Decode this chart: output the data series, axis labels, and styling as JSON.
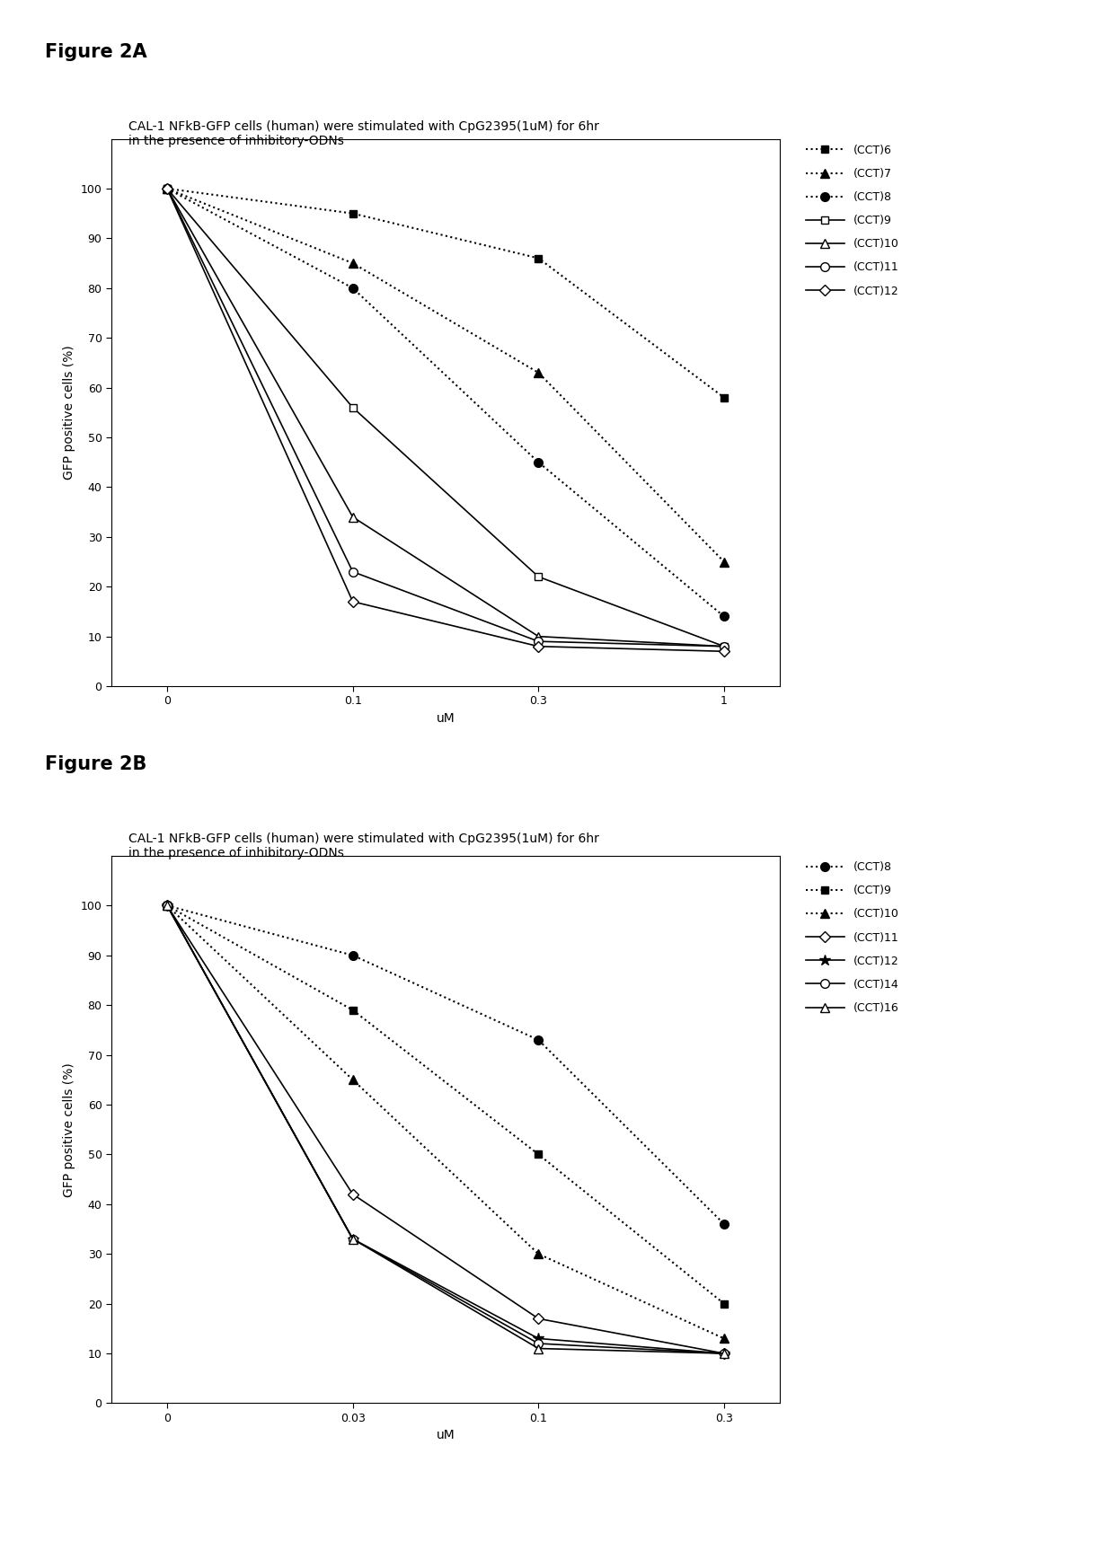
{
  "fig2a": {
    "title_fig": "Figure 2A",
    "subtitle": "CAL-1 NFkB-GFP cells (human) were stimulated with CpG2395(1uM) for 6hr\nin the presence of inhibitory-ODNs",
    "xlabel": "uM",
    "ylabel": "GFP positive cells (%)",
    "x_positions": [
      0,
      1,
      2,
      3
    ],
    "xtick_labels": [
      "0",
      "0.1",
      "0.3",
      "1"
    ],
    "ylim": [
      0,
      110
    ],
    "yticks": [
      0,
      10,
      20,
      30,
      40,
      50,
      60,
      70,
      80,
      90,
      100
    ],
    "series": [
      {
        "label": "(CCT)6",
        "y": [
          100,
          95,
          86,
          58
        ],
        "color": "black",
        "linestyle": "dotted",
        "marker": "s",
        "markerfacecolor": "black",
        "markersize": 6,
        "linewidth": 1.5
      },
      {
        "label": "(CCT)7",
        "y": [
          100,
          85,
          63,
          25
        ],
        "color": "black",
        "linestyle": "dotted",
        "marker": "^",
        "markerfacecolor": "black",
        "markersize": 7,
        "linewidth": 1.5
      },
      {
        "label": "(CCT)8",
        "y": [
          100,
          80,
          45,
          14
        ],
        "color": "black",
        "linestyle": "dotted",
        "marker": "o",
        "markerfacecolor": "black",
        "markersize": 7,
        "linewidth": 1.5
      },
      {
        "label": "(CCT)9",
        "y": [
          100,
          56,
          22,
          8
        ],
        "color": "black",
        "linestyle": "solid",
        "marker": "s",
        "markerfacecolor": "white",
        "markersize": 6,
        "linewidth": 1.2
      },
      {
        "label": "(CCT)10",
        "y": [
          100,
          34,
          10,
          8
        ],
        "color": "black",
        "linestyle": "solid",
        "marker": "^",
        "markerfacecolor": "white",
        "markersize": 7,
        "linewidth": 1.2
      },
      {
        "label": "(CCT)11",
        "y": [
          100,
          23,
          9,
          8
        ],
        "color": "black",
        "linestyle": "solid",
        "marker": "o",
        "markerfacecolor": "white",
        "markersize": 7,
        "linewidth": 1.2
      },
      {
        "label": "(CCT)12",
        "y": [
          100,
          17,
          8,
          7
        ],
        "color": "black",
        "linestyle": "solid",
        "marker": "D",
        "markerfacecolor": "white",
        "markersize": 6,
        "linewidth": 1.2
      }
    ]
  },
  "fig2b": {
    "title_fig": "Figure 2B",
    "subtitle": "CAL-1 NFkB-GFP cells (human) were stimulated with CpG2395(1uM) for 6hr\nin the presence of inhibitory-ODNs",
    "xlabel": "uM",
    "ylabel": "GFP positive cells (%)",
    "x_positions": [
      0,
      1,
      2,
      3
    ],
    "xtick_labels": [
      "0",
      "0.03",
      "0.1",
      "0.3"
    ],
    "ylim": [
      0,
      110
    ],
    "yticks": [
      0,
      10,
      20,
      30,
      40,
      50,
      60,
      70,
      80,
      90,
      100
    ],
    "series": [
      {
        "label": "(CCT)8",
        "y": [
          100,
          90,
          73,
          36
        ],
        "color": "black",
        "linestyle": "dotted",
        "marker": "o",
        "markerfacecolor": "black",
        "markersize": 7,
        "linewidth": 1.5
      },
      {
        "label": "(CCT)9",
        "y": [
          100,
          79,
          50,
          20
        ],
        "color": "black",
        "linestyle": "dotted",
        "marker": "s",
        "markerfacecolor": "black",
        "markersize": 6,
        "linewidth": 1.5
      },
      {
        "label": "(CCT)10",
        "y": [
          100,
          65,
          30,
          13
        ],
        "color": "black",
        "linestyle": "dotted",
        "marker": "^",
        "markerfacecolor": "black",
        "markersize": 7,
        "linewidth": 1.5
      },
      {
        "label": "(CCT)11",
        "y": [
          100,
          42,
          17,
          10
        ],
        "color": "black",
        "linestyle": "solid",
        "marker": "D",
        "markerfacecolor": "white",
        "markersize": 6,
        "linewidth": 1.2
      },
      {
        "label": "(CCT)12",
        "y": [
          100,
          33,
          13,
          10
        ],
        "color": "black",
        "linestyle": "solid",
        "marker": "*",
        "markerfacecolor": "black",
        "markersize": 9,
        "linewidth": 1.2
      },
      {
        "label": "(CCT)14",
        "y": [
          100,
          33,
          12,
          10
        ],
        "color": "black",
        "linestyle": "solid",
        "marker": "o",
        "markerfacecolor": "white",
        "markersize": 7,
        "linewidth": 1.2
      },
      {
        "label": "(CCT)16",
        "y": [
          100,
          33,
          11,
          10
        ],
        "color": "black",
        "linestyle": "solid",
        "marker": "^",
        "markerfacecolor": "white",
        "markersize": 7,
        "linewidth": 1.2
      }
    ]
  },
  "background_color": "#ffffff",
  "fig_title_fontsize": 15,
  "subtitle_fontsize": 10,
  "axis_label_fontsize": 10,
  "tick_fontsize": 9,
  "legend_fontsize": 9
}
